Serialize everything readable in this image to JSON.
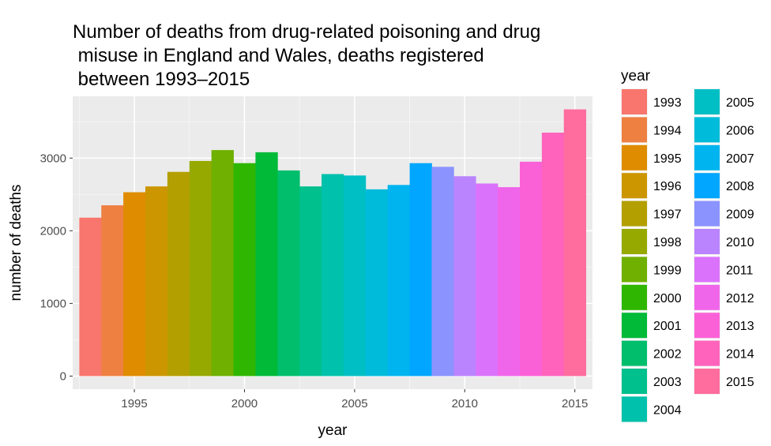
{
  "chart_data": {
    "type": "bar",
    "title_lines": [
      "Number of deaths from drug-related poisoning and drug",
      " misuse in England and Wales, deaths registered",
      " between 1993–2015"
    ],
    "xlabel": "year",
    "ylabel": "number of deaths",
    "xlim": [
      1992.2,
      1993.0,
      2015.8
    ],
    "xlim_range": [
      1992.2,
      2015.8
    ],
    "ylim": [
      -180,
      3850
    ],
    "x_ticks": [
      1995,
      2000,
      2005,
      2010,
      2015
    ],
    "y_ticks": [
      0,
      1000,
      2000,
      3000
    ],
    "grid": true,
    "legend_title": "year",
    "legend_position": "right",
    "x": [
      1993,
      1994,
      1995,
      1996,
      1997,
      1998,
      1999,
      2000,
      2001,
      2002,
      2003,
      2004,
      2005,
      2006,
      2007,
      2008,
      2009,
      2010,
      2011,
      2012,
      2013,
      2014,
      2015
    ],
    "values": [
      2180,
      2350,
      2530,
      2610,
      2810,
      2960,
      3110,
      2930,
      3080,
      2830,
      2610,
      2780,
      2760,
      2570,
      2630,
      2930,
      2880,
      2750,
      2650,
      2600,
      2950,
      3350,
      3670
    ],
    "colors": [
      "#F8766D",
      "#EE8042",
      "#DF8C00",
      "#CC9600",
      "#B49F00",
      "#96A900",
      "#6FB000",
      "#2FB600",
      "#00BA38",
      "#00BE6C",
      "#00C08E",
      "#00C1AB",
      "#00BFC4",
      "#00BBDA",
      "#00B4EF",
      "#00A6FF",
      "#8B93FF",
      "#BA84FF",
      "#DB72FB",
      "#F066EA",
      "#FB61D7",
      "#FF63BC",
      "#FF6C9E"
    ]
  }
}
